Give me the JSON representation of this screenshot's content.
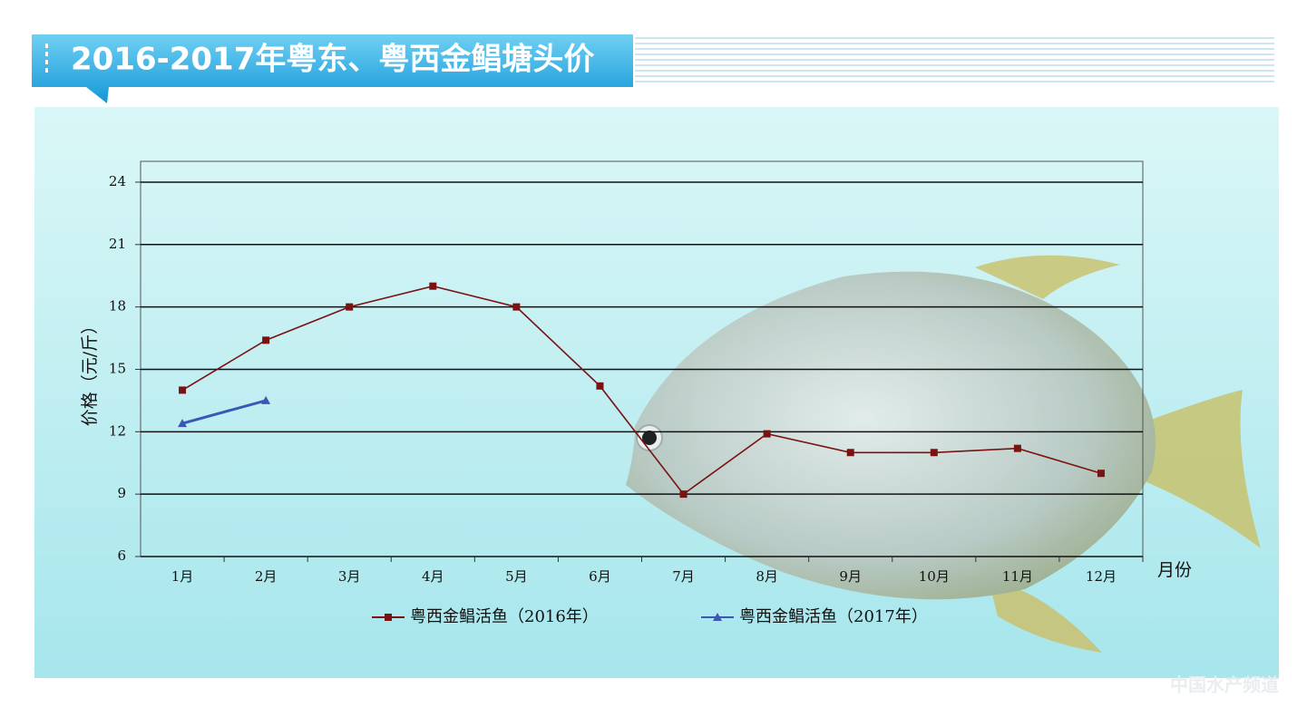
{
  "chart_data": {
    "type": "line",
    "title": "2016-2017年粤东、粤西金鲳塘头价",
    "y_label": "价格（元/斤）",
    "x_label": "月份",
    "categories": [
      "1月",
      "2月",
      "3月",
      "4月",
      "5月",
      "6月",
      "7月",
      "8月",
      "9月",
      "10月",
      "11月",
      "12月"
    ],
    "series": [
      {
        "name": "粤西金鲳活鱼（2016年）",
        "color": "#7a1212",
        "marker": "square",
        "values": [
          14,
          16.4,
          18,
          19,
          18,
          14.2,
          9,
          11.9,
          11,
          11,
          11.2,
          10
        ]
      },
      {
        "name": "粤西金鲳活鱼（2017年）",
        "color": "#3b56b5",
        "marker": "triangle",
        "values": [
          12.4,
          13.5,
          null,
          null,
          null,
          null,
          null,
          null,
          null,
          null,
          null,
          null
        ]
      }
    ],
    "ylim": [
      6,
      25
    ],
    "yticks": [
      6,
      9,
      12,
      15,
      18,
      21,
      24
    ],
    "grid": true,
    "watermark": "中国水产频道"
  }
}
